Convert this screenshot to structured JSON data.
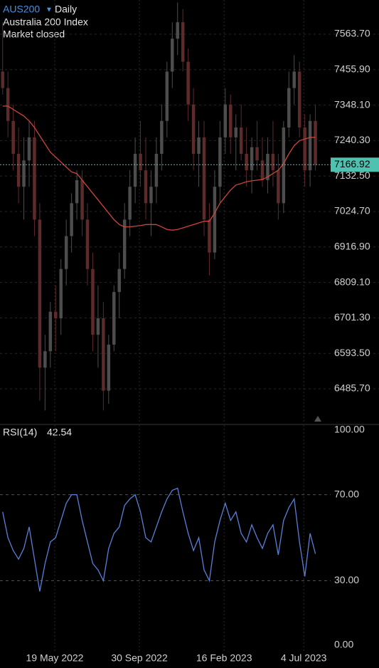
{
  "header": {
    "symbol": "AUS200",
    "interval": "Daily",
    "name": "Australia 200 Index",
    "status": "Market closed"
  },
  "chart_data": [
    {
      "type": "candlestick",
      "open": [
        7450,
        7400,
        7300,
        7200,
        7100,
        7180,
        7250,
        7000,
        6550,
        6600,
        6720,
        6700,
        6850,
        6950,
        7050,
        7120,
        7000,
        6850,
        6650,
        6700,
        6480,
        6620,
        6780,
        6850,
        7000,
        7100,
        7200,
        7150,
        7050,
        7100,
        7200,
        7300,
        7450,
        7550,
        7600,
        7480,
        7350,
        7200,
        7250,
        7000,
        6900,
        7100,
        7250,
        7350,
        7250,
        7280,
        7200,
        7150,
        7220,
        7180,
        7120,
        7200,
        7150,
        7050,
        7280,
        7400,
        7450,
        7280,
        7150,
        7300
      ],
      "high": [
        7600,
        7450,
        7350,
        7280,
        7250,
        7300,
        7300,
        7050,
        6650,
        6750,
        6800,
        6880,
        7000,
        7080,
        7150,
        7150,
        7050,
        6900,
        6800,
        6750,
        6650,
        6800,
        6900,
        7050,
        7150,
        7250,
        7300,
        7250,
        7150,
        7250,
        7350,
        7480,
        7600,
        7660,
        7640,
        7520,
        7400,
        7300,
        7300,
        7050,
        7150,
        7300,
        7400,
        7380,
        7320,
        7350,
        7280,
        7250,
        7300,
        7250,
        7250,
        7300,
        7200,
        7300,
        7450,
        7500,
        7480,
        7320,
        7320,
        7350
      ],
      "low": [
        7380,
        7250,
        7150,
        7050,
        7000,
        7100,
        6950,
        6450,
        6420,
        6550,
        6600,
        6650,
        6800,
        6900,
        7000,
        6950,
        6800,
        6600,
        6550,
        6420,
        6440,
        6600,
        6700,
        6820,
        6950,
        7050,
        7100,
        7000,
        6950,
        7050,
        7150,
        7250,
        7400,
        7500,
        7450,
        7300,
        7150,
        7100,
        6950,
        6830,
        6880,
        7050,
        7200,
        7200,
        7150,
        7180,
        7100,
        7080,
        7150,
        7100,
        7080,
        7100,
        7000,
        7020,
        7250,
        7350,
        7250,
        7100,
        7100,
        7150
      ],
      "close": [
        7400,
        7300,
        7200,
        7100,
        7180,
        7250,
        7000,
        6550,
        6600,
        6720,
        6700,
        6850,
        6950,
        7050,
        7120,
        7000,
        6850,
        6650,
        6700,
        6480,
        6620,
        6780,
        6850,
        7000,
        7100,
        7200,
        7150,
        7050,
        7100,
        7200,
        7300,
        7450,
        7550,
        7600,
        7480,
        7350,
        7200,
        7250,
        7000,
        6900,
        7100,
        7250,
        7350,
        7250,
        7280,
        7200,
        7150,
        7220,
        7180,
        7120,
        7200,
        7150,
        7050,
        7280,
        7400,
        7450,
        7280,
        7150,
        7300,
        7166.92
      ],
      "bull_color": "#4d4d4d",
      "bear_color": "#5e2b2b",
      "ma": {
        "color": "#c8463c",
        "values": [
          7345,
          7345,
          7335,
          7325,
          7315,
          7300,
          7280,
          7255,
          7230,
          7205,
          7190,
          7175,
          7160,
          7145,
          7140,
          7120,
          7100,
          7080,
          7060,
          7040,
          7020,
          7000,
          6985,
          6978,
          6978,
          6980,
          6982,
          6985,
          6985,
          6985,
          6978,
          6970,
          6968,
          6970,
          6975,
          6980,
          6985,
          6990,
          6995,
          6995,
          7020,
          7050,
          7070,
          7090,
          7105,
          7110,
          7115,
          7118,
          7120,
          7122,
          7130,
          7140,
          7150,
          7170,
          7200,
          7225,
          7240,
          7245,
          7250,
          7250
        ]
      },
      "last_color": "#4fc1b0",
      "xlim": [
        0,
        71.5
      ],
      "ylim": [
        6379.6,
        7667.6
      ],
      "yticks": [
        {
          "value": 7563.7,
          "label": "7563.70"
        },
        {
          "value": 7455.9,
          "label": "7455.90"
        },
        {
          "value": 7348.1,
          "label": "7348.10"
        },
        {
          "value": 7240.3,
          "label": "7240.30"
        },
        {
          "value": 7132.5,
          "label": "7132.50"
        },
        {
          "value": 7024.7,
          "label": "7024.70"
        },
        {
          "value": 6916.9,
          "label": "6916.90"
        },
        {
          "value": 6809.1,
          "label": "6809.10"
        },
        {
          "value": 6701.3,
          "label": "6701.30"
        },
        {
          "value": 6593.5,
          "label": "6593.50"
        },
        {
          "value": 6485.7,
          "label": "6485.70"
        }
      ],
      "grid": true
    },
    {
      "type": "line",
      "label": "RSI(14)",
      "series": [
        {
          "name": "RSI(14)",
          "color": "#5b7fd6",
          "values": [
            62,
            50,
            44,
            40,
            45,
            55,
            40,
            25,
            38,
            48,
            50,
            58,
            66,
            70,
            70,
            58,
            48,
            38,
            35,
            30,
            45,
            52,
            55,
            65,
            68,
            70,
            62,
            50,
            48,
            55,
            62,
            68,
            72,
            73,
            62,
            52,
            44,
            50,
            35,
            30,
            48,
            58,
            66,
            58,
            62,
            52,
            48,
            56,
            50,
            45,
            52,
            56,
            42,
            58,
            64,
            68,
            48,
            32,
            52,
            42.54
          ]
        }
      ],
      "xlim": [
        0,
        71.5
      ],
      "ylim": [
        0,
        100
      ],
      "yticks": [
        {
          "value": 100,
          "label": "100.00"
        },
        {
          "value": 70,
          "label": "70.00"
        },
        {
          "value": 30,
          "label": "30.00"
        },
        {
          "value": 0,
          "label": "0.00"
        }
      ],
      "xticks": [
        {
          "value": 10.33,
          "label": "19 May 2022"
        },
        {
          "value": 26.3,
          "label": "30 Sep 2022"
        },
        {
          "value": 42.28,
          "label": "16 Feb 2023"
        },
        {
          "value": 57.3,
          "label": "4 Jul 2023"
        }
      ],
      "grid": true
    }
  ]
}
